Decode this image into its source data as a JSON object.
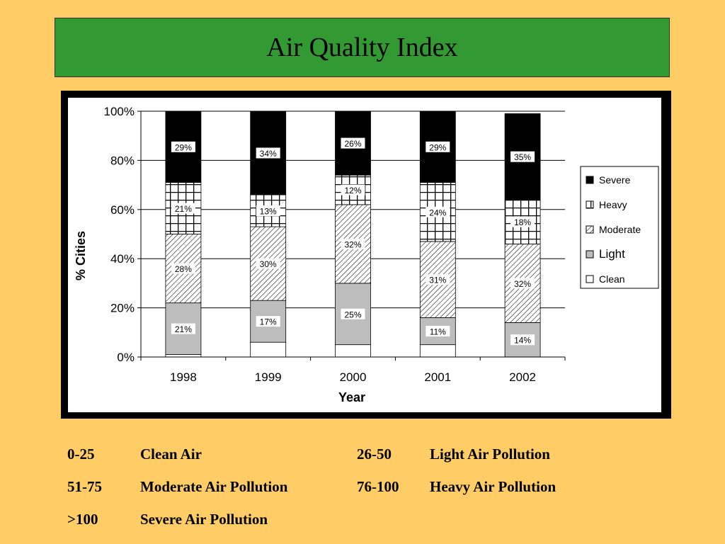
{
  "title": "Air Quality Index",
  "chart_data": {
    "type": "bar",
    "stacked": true,
    "categories": [
      "1998",
      "1999",
      "2000",
      "2001",
      "2002"
    ],
    "xlabel": "Year",
    "ylabel": "% Cities",
    "ylim": [
      0,
      100
    ],
    "yticks": [
      "0%",
      "20%",
      "40%",
      "60%",
      "80%",
      "100%"
    ],
    "legend_position": "right",
    "series": [
      {
        "name": "Clean",
        "values": [
          1,
          6,
          5,
          5,
          0
        ],
        "labels": [
          "",
          "",
          "",
          "",
          ""
        ],
        "pattern": "clean"
      },
      {
        "name": "Light",
        "values": [
          21,
          17,
          25,
          11,
          14
        ],
        "labels": [
          "21%",
          "17%",
          "25%",
          "11%",
          "14%"
        ],
        "pattern": "light"
      },
      {
        "name": "Moderate",
        "values": [
          28,
          30,
          32,
          31,
          32
        ],
        "labels": [
          "28%",
          "30%",
          "32%",
          "31%",
          "32%"
        ],
        "pattern": "moderate"
      },
      {
        "name": "Heavy",
        "values": [
          21,
          13,
          12,
          24,
          18
        ],
        "labels": [
          "21%",
          "13%",
          "12%",
          "24%",
          "18%"
        ],
        "pattern": "heavy"
      },
      {
        "name": "Severe",
        "values": [
          29,
          34,
          26,
          29,
          35
        ],
        "labels": [
          "29%",
          "34%",
          "26%",
          "29%",
          "35%"
        ],
        "pattern": "severe"
      }
    ],
    "legend_order": [
      "Severe",
      "Heavy",
      "Moderate",
      "Light",
      "Clean"
    ]
  },
  "aqi_table": [
    {
      "range": "0-25",
      "desc": "Clean Air",
      "range2": "26-50",
      "desc2": "Light Air Pollution"
    },
    {
      "range": "51-75",
      "desc": "Moderate Air Pollution",
      "range2": "76-100",
      "desc2": "Heavy Air Pollution"
    },
    {
      "range": ">100",
      "desc": "Severe Air Pollution",
      "range2": "",
      "desc2": ""
    }
  ],
  "colors": {
    "background": "#FFCC66",
    "title_bar": "#339933",
    "light": "#BDBDBD",
    "severe": "#000000",
    "clean": "#FFFFFF"
  }
}
